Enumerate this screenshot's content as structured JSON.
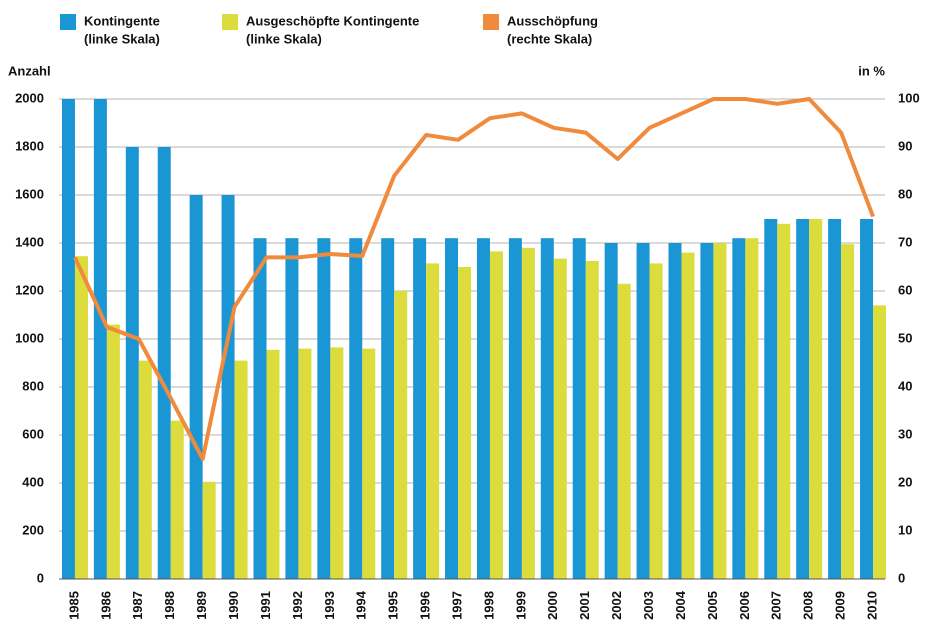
{
  "chart_data": {
    "type": "bar-line",
    "y_label": "Anzahl",
    "y2_label": "in %",
    "categories": [
      "1985",
      "1986",
      "1987",
      "1988",
      "1989",
      "1990",
      "1991",
      "1992",
      "1993",
      "1994",
      "1995",
      "1996",
      "1997",
      "1998",
      "1999",
      "2000",
      "2001",
      "2002",
      "2003",
      "2004",
      "2005",
      "2006",
      "2007",
      "2008",
      "2009",
      "2010"
    ],
    "series": [
      {
        "name": "Kontingente",
        "scale_label": "(linke Skala)",
        "color": "#1a96d4",
        "kind": "bar",
        "values": [
          2000,
          2000,
          1800,
          1800,
          1600,
          1600,
          1420,
          1420,
          1420,
          1420,
          1420,
          1420,
          1420,
          1420,
          1420,
          1420,
          1420,
          1400,
          1400,
          1400,
          1400,
          1420,
          1500,
          1500,
          1500,
          1500
        ]
      },
      {
        "name": "Ausgeschöpfte Kontingente",
        "scale_label": "(linke Skala)",
        "color": "#dcdc3c",
        "kind": "bar",
        "values": [
          1345,
          1060,
          910,
          660,
          405,
          910,
          955,
          960,
          965,
          960,
          1200,
          1315,
          1300,
          1365,
          1380,
          1335,
          1325,
          1230,
          1315,
          1360,
          1400,
          1420,
          1480,
          1500,
          1395,
          1140
        ]
      },
      {
        "name": "Ausschöpfung",
        "scale_label": "(rechte Skala)",
        "color": "#f08a3c",
        "kind": "line",
        "axis": "y2",
        "values": [
          67,
          52.5,
          50,
          37.7,
          25,
          56.7,
          67,
          67,
          67.7,
          67.3,
          84,
          92.5,
          91.5,
          96,
          97,
          94,
          93,
          87.5,
          94,
          97,
          100,
          100,
          99,
          100,
          93,
          75.5
        ]
      }
    ],
    "ylim": [
      0,
      2000
    ],
    "yticks": [
      0,
      200,
      400,
      600,
      800,
      1000,
      1200,
      1400,
      1600,
      1800,
      2000
    ],
    "y2lim": [
      0,
      100
    ],
    "y2ticks": [
      0,
      10,
      20,
      30,
      40,
      50,
      60,
      70,
      80,
      90,
      100
    ],
    "grid": true
  }
}
